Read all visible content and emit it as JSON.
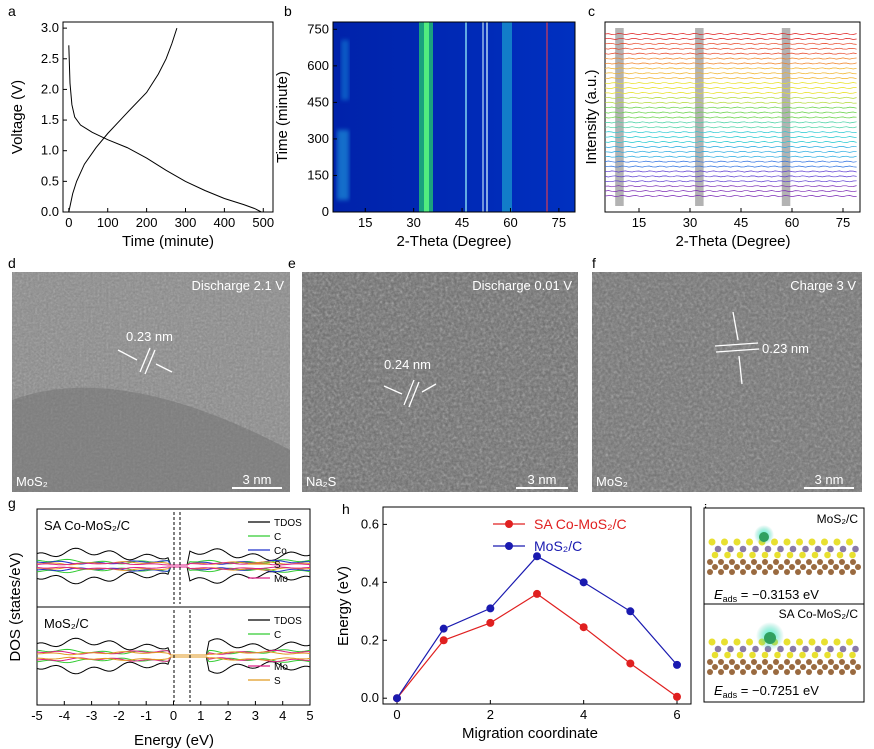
{
  "panels": {
    "a": {
      "label": "a"
    },
    "b": {
      "label": "b"
    },
    "c": {
      "label": "c"
    },
    "d": {
      "label": "d"
    },
    "e": {
      "label": "e"
    },
    "f": {
      "label": "f"
    },
    "g": {
      "label": "g"
    },
    "h": {
      "label": "h"
    },
    "i": {
      "label": "i"
    }
  },
  "chart_data": [
    {
      "id": "a",
      "type": "line",
      "xlabel": "Time (minute)",
      "ylabel": "Voltage (V)",
      "xlim": [
        -15,
        525
      ],
      "ylim": [
        0,
        3.1
      ],
      "xticks": [
        0,
        100,
        200,
        300,
        400,
        500
      ],
      "yticks": [
        0.0,
        0.5,
        1.0,
        1.5,
        2.0,
        2.5,
        3.0
      ],
      "series": [
        {
          "x": [
            0,
            3,
            8,
            15,
            30,
            60,
            100,
            150,
            200,
            250,
            300,
            350,
            400,
            450,
            480,
            495
          ],
          "y": [
            2.72,
            2.1,
            1.75,
            1.55,
            1.42,
            1.3,
            1.18,
            1.05,
            0.88,
            0.68,
            0.5,
            0.35,
            0.22,
            0.12,
            0.05,
            0.0
          ]
        },
        {
          "x": [
            0,
            10,
            20,
            40,
            70,
            100,
            150,
            200,
            230,
            250,
            265,
            278
          ],
          "y": [
            0.0,
            0.3,
            0.5,
            0.78,
            1.05,
            1.28,
            1.62,
            1.95,
            2.25,
            2.5,
            2.75,
            3.0
          ]
        }
      ]
    },
    {
      "id": "b",
      "type": "heatmap",
      "xlabel": "2-Theta (Degree)",
      "ylabel": "Time (minute)",
      "xlim": [
        5,
        80
      ],
      "ylim": [
        0,
        780
      ],
      "xticks": [
        15,
        30,
        45,
        60,
        75
      ],
      "yticks": [
        0,
        150,
        300,
        450,
        600,
        750
      ]
    },
    {
      "id": "c",
      "type": "line",
      "xlabel": "2-Theta (Degree)",
      "ylabel": "Intensity (a.u.)",
      "xlim": [
        5,
        80
      ],
      "xticks": [
        15,
        30,
        45,
        60,
        75
      ],
      "gray_bands": [
        [
          8,
          10.5
        ],
        [
          31.5,
          34
        ],
        [
          57,
          59.5
        ]
      ],
      "sharp_peaks": [
        45.5,
        51.5,
        52.5,
        53.5,
        69
      ]
    },
    {
      "id": "g",
      "type": "line",
      "xlabel": "Energy (eV)",
      "ylabel": "DOS (states/eV)",
      "xlim": [
        -5,
        5
      ],
      "xticks": [
        -5,
        -4,
        -3,
        -2,
        -1,
        0,
        1,
        2,
        3,
        4,
        5
      ],
      "subpanels": [
        {
          "title": "SA Co-MoS₂/C",
          "legend": [
            "TDOS",
            "C",
            "Co",
            "S",
            "Mo"
          ],
          "colors": [
            "#000000",
            "#33cc33",
            "#2233cc",
            "#e09a20",
            "#dd2288"
          ]
        },
        {
          "title": "MoS₂/C",
          "legend": [
            "TDOS",
            "C",
            "Mo",
            "S"
          ],
          "colors": [
            "#000000",
            "#33cc33",
            "#dd2288",
            "#e09a20"
          ]
        }
      ]
    },
    {
      "id": "h",
      "type": "line",
      "xlabel": "Migration coordinate",
      "ylabel": "Energy (eV)",
      "xlim": [
        -0.3,
        6.3
      ],
      "ylim": [
        -0.02,
        0.66
      ],
      "xticks": [
        0,
        2,
        4,
        6
      ],
      "yticks": [
        0.0,
        0.2,
        0.4,
        0.6
      ],
      "categories": [
        0,
        1,
        2,
        3,
        4,
        5,
        6
      ],
      "series": [
        {
          "name": "SA Co-MoS₂/C",
          "color": "#e02020",
          "values": [
            0.0,
            0.2,
            0.26,
            0.36,
            0.245,
            0.12,
            0.005
          ]
        },
        {
          "name": "MoS₂/C",
          "color": "#1a1ab0",
          "values": [
            0.0,
            0.24,
            0.31,
            0.49,
            0.4,
            0.3,
            0.115
          ]
        }
      ]
    }
  ],
  "tem": {
    "d": {
      "title": "Discharge 2.1 V",
      "material": "MoS₂",
      "spacing": "0.23 nm",
      "scale": "3 nm"
    },
    "e": {
      "title": "Discharge 0.01 V",
      "material": "Na₂S",
      "spacing": "0.24 nm",
      "scale": "3 nm"
    },
    "f": {
      "title": "Charge 3 V",
      "material": "MoS₂",
      "spacing": "0.23 nm",
      "scale": "3 nm"
    }
  },
  "structures": {
    "top": {
      "label": "MoS₂/C",
      "eads_label": "E",
      "eads_sub": "ads",
      "eads_value": " = −0.3153 eV"
    },
    "bottom": {
      "label": "SA Co-MoS₂/C",
      "eads_label": "E",
      "eads_sub": "ads",
      "eads_value": " = −0.7251 eV"
    }
  }
}
